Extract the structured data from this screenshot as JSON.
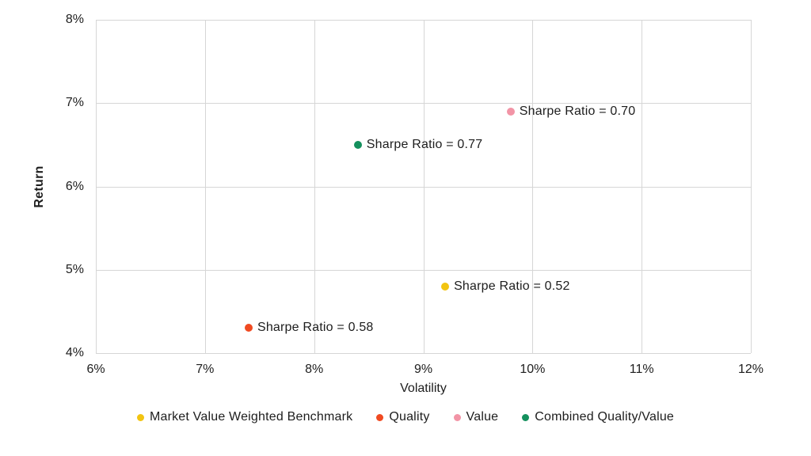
{
  "chart_data": {
    "type": "scatter",
    "title": "",
    "xlabel": "Volatility",
    "ylabel": "Return",
    "xlim": [
      6,
      12
    ],
    "ylim": [
      4,
      8
    ],
    "grid": true,
    "legend_position": "bottom",
    "x_ticks": [
      {
        "value": 6,
        "label": "6%"
      },
      {
        "value": 7,
        "label": "7%"
      },
      {
        "value": 8,
        "label": "8%"
      },
      {
        "value": 9,
        "label": "9%"
      },
      {
        "value": 10,
        "label": "10%"
      },
      {
        "value": 11,
        "label": "11%"
      },
      {
        "value": 12,
        "label": "12%"
      }
    ],
    "y_ticks": [
      {
        "value": 4,
        "label": "4%"
      },
      {
        "value": 5,
        "label": "5%"
      },
      {
        "value": 6,
        "label": "6%"
      },
      {
        "value": 7,
        "label": "7%"
      },
      {
        "value": 8,
        "label": "8%"
      }
    ],
    "series": [
      {
        "name": "Market Value Weighted Benchmark",
        "color": "#F2C411",
        "x": 9.2,
        "y": 4.8,
        "sharpe_ratio": 0.52,
        "point_label": "Sharpe Ratio = 0.52"
      },
      {
        "name": "Quality",
        "color": "#F04A21",
        "x": 7.4,
        "y": 4.3,
        "sharpe_ratio": 0.58,
        "point_label": "Sharpe Ratio = 0.58"
      },
      {
        "name": "Value",
        "color": "#F294A6",
        "x": 9.8,
        "y": 6.9,
        "sharpe_ratio": 0.7,
        "point_label": "Sharpe Ratio = 0.70"
      },
      {
        "name": "Combined Quality/Value",
        "color": "#14905D",
        "x": 8.4,
        "y": 6.5,
        "sharpe_ratio": 0.77,
        "point_label": "Sharpe Ratio = 0.77"
      }
    ]
  },
  "colors": {
    "gridline": "#d6d6d6",
    "text": "#1d1d1d",
    "background": "#ffffff"
  }
}
